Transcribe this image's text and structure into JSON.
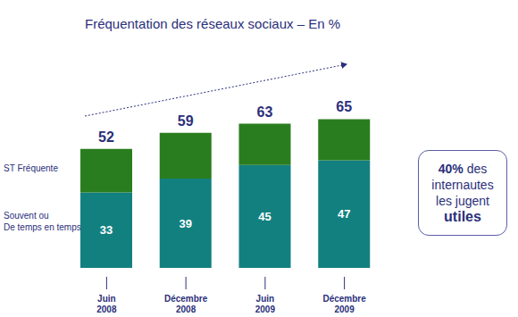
{
  "chart_data": {
    "type": "bar",
    "title": "Fréquentation des réseaux sociaux – En %",
    "categories": [
      "Juin\n2008",
      "Décembre\n2008",
      "Juin\n2009",
      "Décembre\n2009"
    ],
    "series": [
      {
        "name": "Souvent ou\nDe temps en temps",
        "color": "#138080",
        "values": [
          33,
          39,
          45,
          47
        ]
      },
      {
        "name": "ST Fréquente",
        "color": "#2a7d1e",
        "values": [
          19,
          20,
          18,
          18
        ]
      }
    ],
    "totals": [
      52,
      59,
      63,
      65
    ],
    "stacked": true,
    "data_labels": true,
    "tick_labels": "x",
    "ylim": [
      0,
      80
    ],
    "annotation": [
      "40% des",
      "internautes",
      "les jugent",
      "utiles"
    ]
  }
}
